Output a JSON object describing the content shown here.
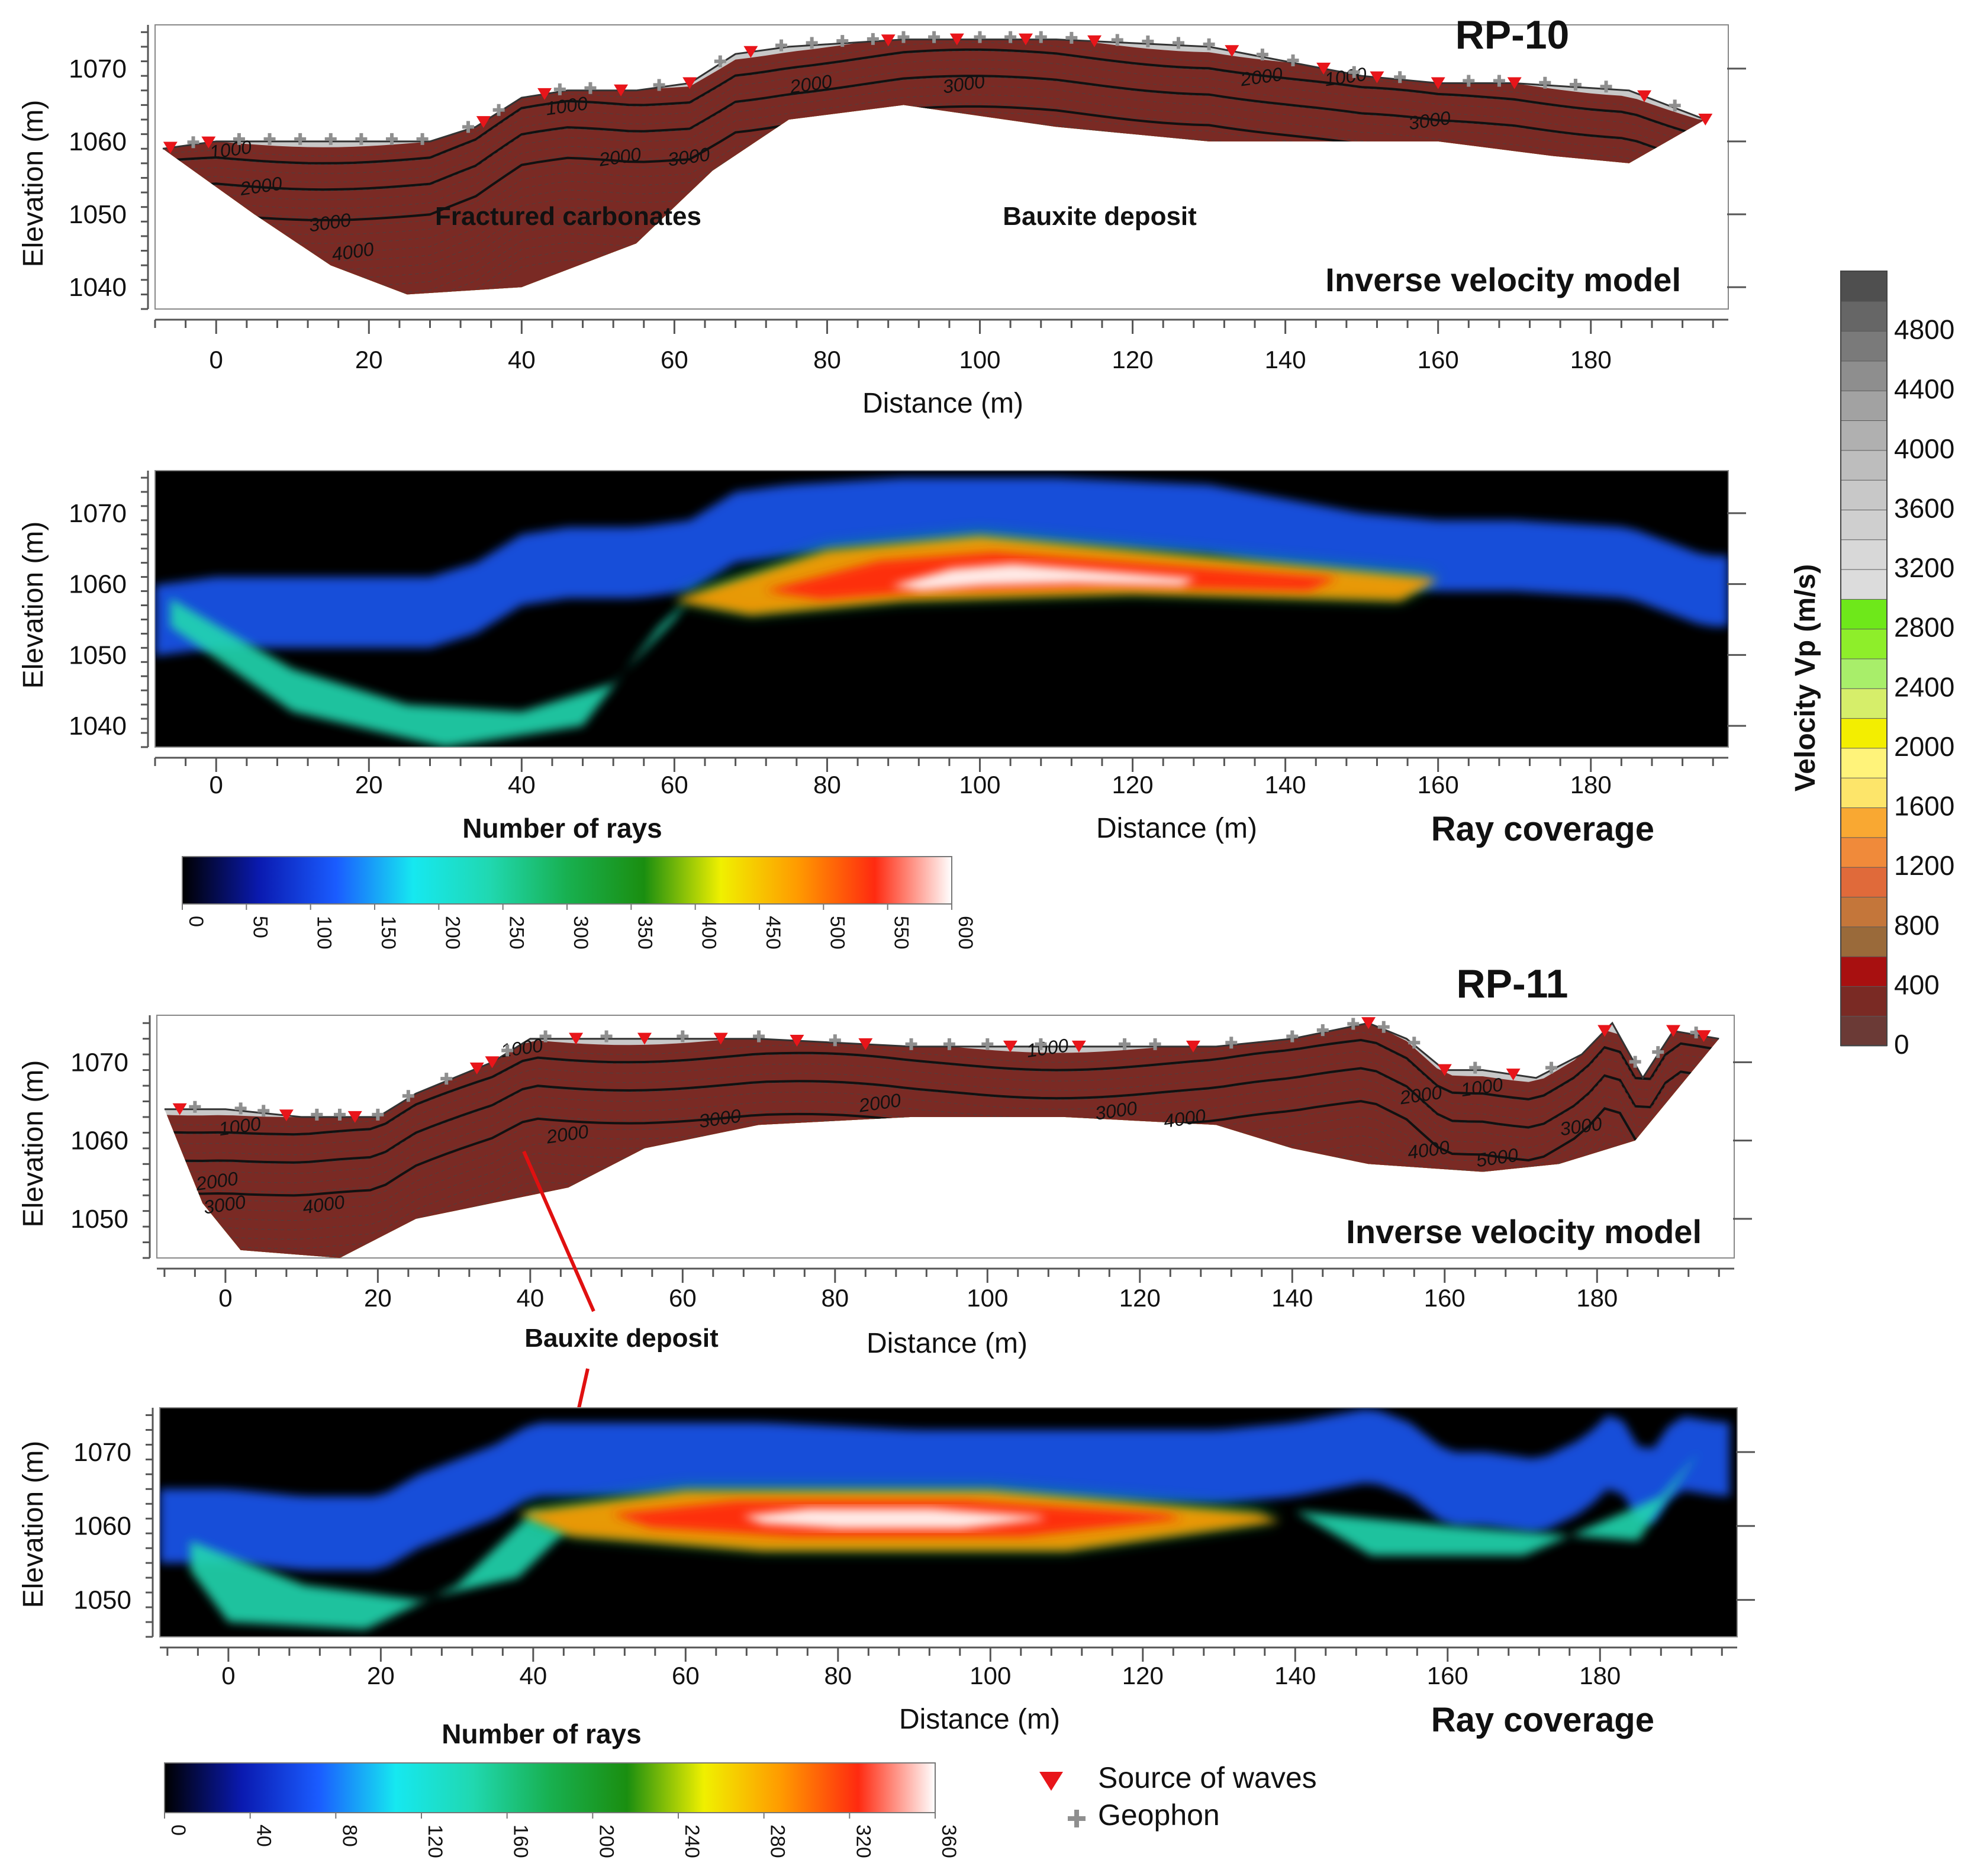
{
  "chart_data": [
    {
      "type": "heatmap",
      "profile": "RP-10",
      "panel": "Inverse velocity model",
      "xlabel": "Distance (m)",
      "ylabel": "Elevation (m)",
      "xlim": [
        -8,
        198
      ],
      "ylim": [
        1037,
        1076
      ],
      "xticks": [
        0,
        20,
        40,
        60,
        80,
        100,
        120,
        140,
        160,
        180
      ],
      "yticks": [
        1040,
        1050,
        1060,
        1070
      ],
      "annotations": [
        "Fractured carbonates",
        "Bauxite deposit"
      ],
      "surface": [
        [
          -7,
          1059
        ],
        [
          0,
          1060
        ],
        [
          10,
          1060
        ],
        [
          20,
          1060
        ],
        [
          28,
          1060
        ],
        [
          34,
          1062
        ],
        [
          40,
          1066
        ],
        [
          46,
          1067
        ],
        [
          55,
          1067
        ],
        [
          62,
          1068
        ],
        [
          68,
          1072
        ],
        [
          75,
          1073
        ],
        [
          90,
          1074
        ],
        [
          110,
          1074
        ],
        [
          130,
          1073
        ],
        [
          140,
          1071
        ],
        [
          150,
          1069
        ],
        [
          160,
          1068
        ],
        [
          170,
          1068
        ],
        [
          185,
          1067
        ],
        [
          195,
          1063
        ]
      ],
      "bottom": [
        [
          -7,
          1059
        ],
        [
          5,
          1050
        ],
        [
          15,
          1043
        ],
        [
          25,
          1039
        ],
        [
          40,
          1040
        ],
        [
          55,
          1046
        ],
        [
          65,
          1056
        ],
        [
          75,
          1063
        ],
        [
          90,
          1065
        ],
        [
          110,
          1062
        ],
        [
          130,
          1060
        ],
        [
          145,
          1060
        ],
        [
          160,
          1060
        ],
        [
          175,
          1058
        ],
        [
          185,
          1057
        ],
        [
          195,
          1063
        ]
      ],
      "contour_labels": [
        {
          "x": 2,
          "y": 1058,
          "v": "1000"
        },
        {
          "x": 6,
          "y": 1053,
          "v": "2000"
        },
        {
          "x": 15,
          "y": 1048,
          "v": "3000"
        },
        {
          "x": 18,
          "y": 1044,
          "v": "4000"
        },
        {
          "x": 46,
          "y": 1064,
          "v": "1000"
        },
        {
          "x": 53,
          "y": 1057,
          "v": "2000"
        },
        {
          "x": 62,
          "y": 1057,
          "v": "3000"
        },
        {
          "x": 78,
          "y": 1067,
          "v": "2000"
        },
        {
          "x": 98,
          "y": 1067,
          "v": "3000"
        },
        {
          "x": 137,
          "y": 1068,
          "v": "2000"
        },
        {
          "x": 148,
          "y": 1068,
          "v": "1000"
        },
        {
          "x": 159,
          "y": 1062,
          "v": "3000"
        }
      ],
      "sources_x": [
        -6,
        -1,
        35,
        43,
        53,
        62,
        70,
        88,
        97,
        106,
        115,
        133,
        145,
        152,
        160,
        170,
        187,
        195
      ],
      "geophones_x": [
        -3,
        3,
        7,
        11,
        15,
        19,
        23,
        27,
        33,
        37,
        45,
        49,
        58,
        66,
        74,
        78,
        82,
        86,
        90,
        94,
        100,
        104,
        108,
        112,
        118,
        122,
        126,
        130,
        137,
        141,
        149,
        155,
        164,
        168,
        174,
        178,
        182,
        191
      ]
    },
    {
      "type": "heatmap",
      "profile": "RP-10",
      "panel": "Ray coverage",
      "xlabel": "Distance (m)",
      "ylabel": "Elevation (m)",
      "colorbar_label": "Number of rays",
      "colorbar_ticks": [
        0,
        50,
        100,
        150,
        200,
        250,
        300,
        350,
        400,
        450,
        500,
        550,
        600
      ],
      "xlim": [
        -8,
        198
      ],
      "ylim": [
        1037,
        1076
      ],
      "xticks": [
        0,
        20,
        40,
        60,
        80,
        100,
        120,
        140,
        160,
        180
      ],
      "yticks": [
        1040,
        1050,
        1060,
        1070
      ]
    },
    {
      "type": "heatmap",
      "profile": "RP-11",
      "panel": "Inverse velocity model",
      "xlabel": "Distance (m)",
      "ylabel": "Elevation (m)",
      "xlim": [
        -9,
        198
      ],
      "ylim": [
        1045,
        1076
      ],
      "xticks": [
        0,
        20,
        40,
        60,
        80,
        100,
        120,
        140,
        160,
        180
      ],
      "yticks": [
        1050,
        1060,
        1070
      ],
      "annotations": [
        "Bauxite deposit"
      ],
      "surface": [
        [
          -8,
          1064
        ],
        [
          0,
          1064
        ],
        [
          10,
          1063
        ],
        [
          20,
          1063
        ],
        [
          25,
          1066
        ],
        [
          30,
          1068
        ],
        [
          35,
          1070
        ],
        [
          40,
          1073
        ],
        [
          55,
          1073
        ],
        [
          70,
          1073
        ],
        [
          90,
          1072
        ],
        [
          110,
          1072
        ],
        [
          130,
          1072
        ],
        [
          140,
          1073
        ],
        [
          150,
          1075
        ],
        [
          155,
          1073
        ],
        [
          160,
          1069
        ],
        [
          165,
          1069
        ],
        [
          172,
          1068
        ],
        [
          178,
          1071
        ],
        [
          182,
          1075
        ],
        [
          186,
          1068
        ],
        [
          190,
          1074
        ],
        [
          196,
          1073
        ]
      ],
      "bottom": [
        [
          -8,
          1064
        ],
        [
          -3,
          1052
        ],
        [
          2,
          1046
        ],
        [
          15,
          1045
        ],
        [
          25,
          1050
        ],
        [
          35,
          1052
        ],
        [
          45,
          1054
        ],
        [
          55,
          1059
        ],
        [
          70,
          1062
        ],
        [
          90,
          1063
        ],
        [
          110,
          1063
        ],
        [
          130,
          1062
        ],
        [
          140,
          1059
        ],
        [
          150,
          1057
        ],
        [
          165,
          1056
        ],
        [
          175,
          1057
        ],
        [
          185,
          1060
        ],
        [
          196,
          1073
        ]
      ],
      "contour_labels": [
        {
          "x": 2,
          "y": 1061,
          "v": "1000"
        },
        {
          "x": -1,
          "y": 1054,
          "v": "2000"
        },
        {
          "x": 0,
          "y": 1051,
          "v": "3000"
        },
        {
          "x": 13,
          "y": 1051,
          "v": "4000"
        },
        {
          "x": 39,
          "y": 1071,
          "v": "1000"
        },
        {
          "x": 45,
          "y": 1060,
          "v": "2000"
        },
        {
          "x": 65,
          "y": 1062,
          "v": "3000"
        },
        {
          "x": 86,
          "y": 1064,
          "v": "2000"
        },
        {
          "x": 108,
          "y": 1071,
          "v": "1000"
        },
        {
          "x": 117,
          "y": 1063,
          "v": "3000"
        },
        {
          "x": 126,
          "y": 1062,
          "v": "4000"
        },
        {
          "x": 157,
          "y": 1065,
          "v": "2000"
        },
        {
          "x": 165,
          "y": 1066,
          "v": "1000"
        },
        {
          "x": 158,
          "y": 1058,
          "v": "4000"
        },
        {
          "x": 167,
          "y": 1057,
          "v": "5000"
        },
        {
          "x": 178,
          "y": 1061,
          "v": "3000"
        }
      ],
      "sources_x": [
        -6,
        8,
        17,
        33,
        35,
        46,
        55,
        65,
        75,
        84,
        103,
        112,
        127,
        150,
        160,
        169,
        181,
        190,
        194
      ],
      "geophones_x": [
        -4,
        2,
        5,
        12,
        15,
        20,
        24,
        29,
        37,
        42,
        50,
        60,
        70,
        80,
        90,
        95,
        100,
        107,
        118,
        122,
        132,
        140,
        144,
        148,
        152,
        156,
        164,
        174,
        185,
        188,
        193
      ]
    },
    {
      "type": "heatmap",
      "profile": "RP-11",
      "panel": "Ray coverage",
      "xlabel": "Distance (m)",
      "ylabel": "Elevation (m)",
      "colorbar_label": "Number of rays",
      "colorbar_ticks": [
        0,
        40,
        80,
        120,
        160,
        200,
        240,
        280,
        320,
        360
      ],
      "xlim": [
        -9,
        198
      ],
      "ylim": [
        1045,
        1076
      ],
      "xticks": [
        0,
        20,
        40,
        60,
        80,
        100,
        120,
        140,
        160,
        180
      ],
      "yticks": [
        1050,
        1060,
        1070
      ]
    }
  ],
  "velocity_scale": {
    "label": "Velocity Vp (m/s)",
    "ticks": [
      0,
      400,
      800,
      1200,
      1600,
      2000,
      2400,
      2800,
      3200,
      3600,
      4000,
      4400,
      4800
    ],
    "colors": [
      "#6b3a36",
      "#7a2a24",
      "#a81010",
      "#9a6a3a",
      "#c4763a",
      "#e06a3a",
      "#f08a3a",
      "#f9a832",
      "#fde56a",
      "#fff37a",
      "#f3ee00",
      "#d6ee6a",
      "#a8ee6a",
      "#8eee2a",
      "#6ee81a",
      "#dcdcdc",
      "#d8d8d8",
      "#cfcfcf",
      "#c8c8c8",
      "#bdbdbd",
      "#b0b0b0",
      "#a2a2a2",
      "#8e8e8e",
      "#7a7a7a",
      "#666666",
      "#4f4f4f"
    ]
  },
  "rays_colors": [
    "#000000",
    "#0a1ab0",
    "#1a5cff",
    "#16e8f0",
    "#20d8b0",
    "#18b050",
    "#1a8e10",
    "#f0f000",
    "#ff9a00",
    "#ff2a10",
    "#ffffff"
  ],
  "titles": {
    "rp10": "RP-10",
    "rp11": "RP-11"
  },
  "labels": {
    "inverse_model": "Inverse velocity model",
    "ray_coverage": "Ray coverage",
    "number_of_rays": "Number of rays",
    "distance": "Distance (m)",
    "elevation": "Elevation (m)",
    "fractured": "Fractured carbonates",
    "bauxite": "Bauxite deposit"
  },
  "legend": {
    "source": "Source of waves",
    "geophone": "Geophon"
  }
}
